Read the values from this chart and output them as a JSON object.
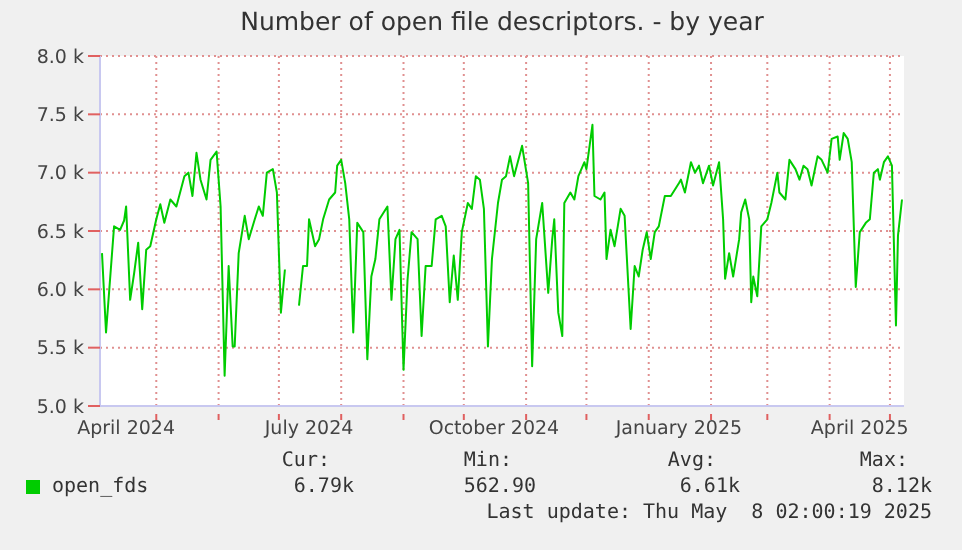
{
  "chart_data": {
    "type": "line",
    "title": "Number of open file descriptors. - by year",
    "x": [
      "2024-04-04",
      "2024-04-06",
      "2024-04-10",
      "2024-04-13",
      "2024-04-15",
      "2024-04-16",
      "2024-04-18",
      "2024-04-20",
      "2024-04-22",
      "2024-04-24",
      "2024-04-26",
      "2024-04-28",
      "2024-05-01",
      "2024-05-03",
      "2024-05-05",
      "2024-05-08",
      "2024-05-11",
      "2024-05-15",
      "2024-05-17",
      "2024-05-19",
      "2024-05-21",
      "2024-05-23",
      "2024-05-26",
      "2024-05-28",
      "2024-05-31",
      "2024-06-02",
      "2024-06-04",
      "2024-06-06",
      "2024-06-08",
      "2024-06-09",
      "2024-06-11",
      "2024-06-14",
      "2024-06-16",
      "2024-06-19",
      "2024-06-21",
      "2024-06-23",
      "2024-06-25",
      "2024-06-28",
      "2024-06-30",
      "2024-07-02",
      "2024-07-04",
      "2024-07-07",
      "2024-07-11",
      "2024-07-13",
      "2024-07-15",
      "2024-07-16",
      "2024-07-19",
      "2024-07-21",
      "2024-07-23",
      "2024-07-26",
      "2024-07-29",
      "2024-07-30",
      "2024-08-01",
      "2024-08-03",
      "2024-08-05",
      "2024-08-07",
      "2024-08-09",
      "2024-08-12",
      "2024-08-14",
      "2024-08-16",
      "2024-08-18",
      "2024-08-20",
      "2024-08-24",
      "2024-08-26",
      "2024-08-28",
      "2024-08-30",
      "2024-09-01",
      "2024-09-03",
      "2024-09-05",
      "2024-09-08",
      "2024-09-10",
      "2024-09-12",
      "2024-09-15",
      "2024-09-17",
      "2024-09-20",
      "2024-09-22",
      "2024-09-24",
      "2024-09-26",
      "2024-09-28",
      "2024-09-30",
      "2024-10-03",
      "2024-10-05",
      "2024-10-07",
      "2024-10-09",
      "2024-10-11",
      "2024-10-13",
      "2024-10-15",
      "2024-10-18",
      "2024-10-20",
      "2024-10-22",
      "2024-10-24",
      "2024-10-26",
      "2024-10-30",
      "2024-11-02",
      "2024-11-04",
      "2024-11-06",
      "2024-11-09",
      "2024-11-12",
      "2024-11-14",
      "2024-11-15",
      "2024-11-17",
      "2024-11-19",
      "2024-11-20",
      "2024-11-23",
      "2024-11-25",
      "2024-11-27",
      "2024-11-30",
      "2024-12-01",
      "2024-12-04",
      "2024-12-05",
      "2024-12-08",
      "2024-12-10",
      "2024-12-11",
      "2024-12-13",
      "2024-12-15",
      "2024-12-18",
      "2024-12-20",
      "2024-12-23",
      "2024-12-25",
      "2024-12-27",
      "2024-12-29",
      "2024-12-31",
      "2025-01-02",
      "2025-01-04",
      "2025-01-06",
      "2025-01-09",
      "2025-01-12",
      "2025-01-16",
      "2025-01-17",
      "2025-01-19",
      "2025-01-22",
      "2025-01-24",
      "2025-01-26",
      "2025-01-28",
      "2025-01-31",
      "2025-02-02",
      "2025-02-05",
      "2025-02-07",
      "2025-02-08",
      "2025-02-10",
      "2025-02-12",
      "2025-02-15",
      "2025-02-16",
      "2025-02-18",
      "2025-02-20",
      "2025-02-21",
      "2025-02-22",
      "2025-02-24",
      "2025-02-26",
      "2025-03-01",
      "2025-03-03",
      "2025-03-06",
      "2025-03-07",
      "2025-03-10",
      "2025-03-12",
      "2025-03-15",
      "2025-03-17",
      "2025-03-19",
      "2025-03-21",
      "2025-03-23",
      "2025-03-26",
      "2025-03-28",
      "2025-03-31",
      "2025-04-02",
      "2025-04-05",
      "2025-04-06",
      "2025-04-08",
      "2025-04-10",
      "2025-04-12",
      "2025-04-14",
      "2025-04-16",
      "2025-04-19",
      "2025-04-21",
      "2025-04-23",
      "2025-04-25",
      "2025-04-26",
      "2025-04-28",
      "2025-04-30",
      "2025-05-02",
      "2025-05-04",
      "2025-05-05",
      "2025-05-07"
    ],
    "series": [
      {
        "name": "open_fds",
        "color": "#00cc00",
        "values": [
          6310,
          5630,
          6540,
          6510,
          6590,
          6710,
          5910,
          6140,
          6400,
          5830,
          6340,
          6370,
          6600,
          6730,
          6570,
          6770,
          6710,
          6970,
          7000,
          6800,
          7170,
          6940,
          6770,
          7110,
          7180,
          6710,
          5260,
          6200,
          5510,
          5510,
          6310,
          6630,
          6430,
          6600,
          6710,
          6630,
          7000,
          7030,
          6830,
          5800,
          6170,
          null,
          5860,
          6200,
          6200,
          6600,
          6370,
          6430,
          6600,
          6770,
          6830,
          7060,
          7110,
          6910,
          6600,
          5630,
          6570,
          6490,
          5400,
          6110,
          6260,
          6600,
          6710,
          5910,
          6430,
          6510,
          5310,
          6080,
          6490,
          6430,
          5600,
          6200,
          6200,
          6600,
          6630,
          6540,
          5890,
          6290,
          5910,
          6490,
          6740,
          6690,
          6970,
          6940,
          6690,
          5510,
          6260,
          6740,
          6940,
          6970,
          7140,
          6970,
          7230,
          6910,
          5340,
          6430,
          6740,
          5970,
          6430,
          6600,
          5800,
          5600,
          6740,
          6830,
          6770,
          6970,
          7090,
          7030,
          7410,
          6800,
          6770,
          6830,
          6260,
          6510,
          6370,
          6690,
          6630,
          5660,
          6200,
          6110,
          6340,
          6490,
          6260,
          6490,
          6540,
          6800,
          6800,
          6910,
          6940,
          6830,
          7090,
          7000,
          7060,
          6910,
          7060,
          6890,
          7090,
          6600,
          6090,
          6310,
          6110,
          6430,
          6660,
          6770,
          6600,
          5890,
          6110,
          5940,
          6540,
          6600,
          6740,
          7000,
          6830,
          6770,
          7110,
          7030,
          6940,
          7060,
          7030,
          6890,
          7140,
          7110,
          7000,
          7290,
          7310,
          7110,
          7340,
          7290,
          7090,
          6020,
          6490,
          6570,
          6600,
          7000,
          7030,
          6940,
          7090,
          7140,
          7060,
          5690,
          6460,
          6770
        ]
      }
    ],
    "xlim": [
      "2024-04-03",
      "2025-05-08"
    ],
    "xticks": [
      {
        "value": "2024-04-16",
        "label": "April 2024"
      },
      {
        "value": "2024-05-01",
        "label": null
      },
      {
        "value": "2024-06-01",
        "label": null
      },
      {
        "value": "2024-07-01",
        "label": null
      },
      {
        "value": "2024-07-16",
        "label": "July 2024"
      },
      {
        "value": "2024-08-01",
        "label": null
      },
      {
        "value": "2024-09-01",
        "label": null
      },
      {
        "value": "2024-10-01",
        "label": null
      },
      {
        "value": "2024-10-16",
        "label": "October 2024"
      },
      {
        "value": "2024-11-01",
        "label": null
      },
      {
        "value": "2024-12-01",
        "label": null
      },
      {
        "value": "2025-01-01",
        "label": null
      },
      {
        "value": "2025-01-16",
        "label": "January 2025"
      },
      {
        "value": "2025-02-01",
        "label": null
      },
      {
        "value": "2025-03-01",
        "label": null
      },
      {
        "value": "2025-04-01",
        "label": null
      },
      {
        "value": "2025-04-16",
        "label": "April 2025"
      },
      {
        "value": "2025-05-01",
        "label": null
      }
    ],
    "ylim": [
      5000,
      8000
    ],
    "yticks": [
      {
        "value": 5000,
        "label": "5.0 k"
      },
      {
        "value": 5500,
        "label": "5.5 k"
      },
      {
        "value": 6000,
        "label": "6.0 k"
      },
      {
        "value": 6500,
        "label": "6.5 k"
      },
      {
        "value": 7000,
        "label": "7.0 k"
      },
      {
        "value": 7500,
        "label": "7.5 k"
      },
      {
        "value": 8000,
        "label": "8.0 k"
      }
    ],
    "grid": true,
    "legend": "bottom",
    "marker": "none",
    "line_style": "solid",
    "annotations": [
      "Cur:",
      "Min:",
      "Avg:",
      "Max:",
      "6.79k",
      "562.90",
      "6.61k",
      "8.12k",
      "Last update: Thu May  8 02:00:19 2025"
    ]
  }
}
